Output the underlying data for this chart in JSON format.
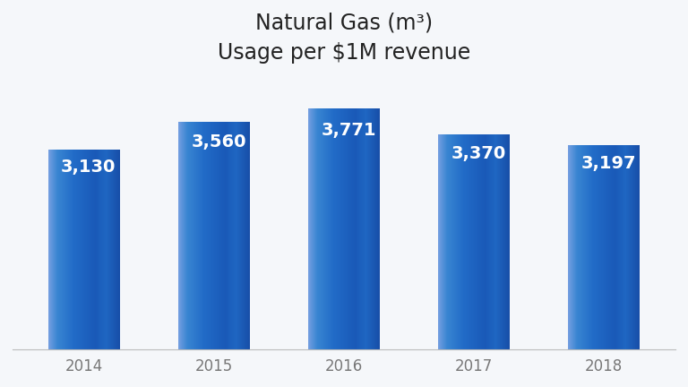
{
  "categories": [
    "2014",
    "2015",
    "2016",
    "2017",
    "2018"
  ],
  "values": [
    3130,
    3560,
    3771,
    3370,
    3197
  ],
  "labels": [
    "3,130",
    "3,560",
    "3,771",
    "3,370",
    "3,197"
  ],
  "title_line1": "Natural Gas (m³)",
  "title_line2": "Usage per $1M revenue",
  "background_color": "#f5f7fa",
  "label_color": "#ffffff",
  "tick_color": "#777777",
  "ylim": [
    0,
    4300
  ],
  "bar_width": 0.55,
  "label_fontsize": 14,
  "title_fontsize": 17,
  "tick_fontsize": 12,
  "gradient_stops": [
    [
      0.0,
      [
        0.45,
        0.62,
        0.88
      ]
    ],
    [
      0.12,
      [
        0.22,
        0.52,
        0.82
      ]
    ],
    [
      0.35,
      [
        0.13,
        0.42,
        0.78
      ]
    ],
    [
      0.65,
      [
        0.1,
        0.35,
        0.72
      ]
    ],
    [
      0.8,
      [
        0.12,
        0.4,
        0.76
      ]
    ],
    [
      1.0,
      [
        0.09,
        0.3,
        0.65
      ]
    ]
  ]
}
